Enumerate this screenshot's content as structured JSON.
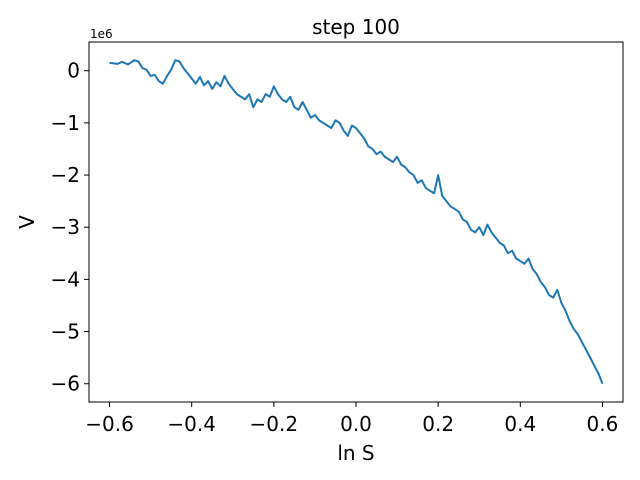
{
  "chart_data": {
    "type": "line",
    "title": "step 100",
    "xlabel": "ln S",
    "ylabel": "V",
    "y_scale_label": "1e6",
    "xlim": [
      -0.65,
      0.65
    ],
    "ylim": [
      -6.35,
      0.55
    ],
    "x_ticks": [
      -0.6,
      -0.4,
      -0.2,
      0.0,
      0.2,
      0.4,
      0.6
    ],
    "x_tick_labels": [
      "−0.6",
      "−0.4",
      "−0.2",
      "0.0",
      "0.2",
      "0.4",
      "0.6"
    ],
    "y_ticks": [
      0,
      -1,
      -2,
      -3,
      -4,
      -5,
      -6
    ],
    "y_tick_labels": [
      "0",
      "−1",
      "−2",
      "−3",
      "−4",
      "−5",
      "−6"
    ],
    "grid": false,
    "series": [
      {
        "color": "#1f77b4",
        "x": [
          -0.6,
          -0.58,
          -0.57,
          -0.555,
          -0.54,
          -0.53,
          -0.52,
          -0.51,
          -0.5,
          -0.49,
          -0.48,
          -0.47,
          -0.46,
          -0.45,
          -0.44,
          -0.43,
          -0.42,
          -0.41,
          -0.4,
          -0.39,
          -0.38,
          -0.37,
          -0.36,
          -0.35,
          -0.34,
          -0.33,
          -0.32,
          -0.31,
          -0.3,
          -0.29,
          -0.28,
          -0.27,
          -0.26,
          -0.25,
          -0.24,
          -0.23,
          -0.22,
          -0.21,
          -0.2,
          -0.19,
          -0.18,
          -0.17,
          -0.16,
          -0.15,
          -0.14,
          -0.13,
          -0.12,
          -0.11,
          -0.1,
          -0.09,
          -0.08,
          -0.07,
          -0.06,
          -0.05,
          -0.04,
          -0.03,
          -0.02,
          -0.01,
          0.0,
          0.01,
          0.02,
          0.03,
          0.04,
          0.05,
          0.06,
          0.07,
          0.08,
          0.09,
          0.1,
          0.11,
          0.12,
          0.13,
          0.14,
          0.15,
          0.16,
          0.17,
          0.18,
          0.19,
          0.2,
          0.21,
          0.22,
          0.23,
          0.24,
          0.25,
          0.26,
          0.27,
          0.28,
          0.29,
          0.3,
          0.31,
          0.32,
          0.33,
          0.34,
          0.35,
          0.36,
          0.37,
          0.38,
          0.39,
          0.4,
          0.41,
          0.42,
          0.43,
          0.44,
          0.45,
          0.46,
          0.47,
          0.48,
          0.49,
          0.5,
          0.51,
          0.52,
          0.53,
          0.54,
          0.55,
          0.56,
          0.57,
          0.58,
          0.59,
          0.6
        ],
        "y": [
          0.15,
          0.13,
          0.17,
          0.12,
          0.2,
          0.18,
          0.05,
          0.02,
          -0.1,
          -0.08,
          -0.2,
          -0.25,
          -0.1,
          0.02,
          0.2,
          0.18,
          0.05,
          -0.05,
          -0.15,
          -0.25,
          -0.12,
          -0.28,
          -0.2,
          -0.35,
          -0.22,
          -0.3,
          -0.1,
          -0.25,
          -0.35,
          -0.45,
          -0.5,
          -0.55,
          -0.45,
          -0.7,
          -0.55,
          -0.6,
          -0.45,
          -0.5,
          -0.3,
          -0.45,
          -0.55,
          -0.6,
          -0.5,
          -0.7,
          -0.75,
          -0.6,
          -0.75,
          -0.9,
          -0.85,
          -0.95,
          -1.0,
          -1.05,
          -1.1,
          -0.95,
          -1.0,
          -1.15,
          -1.25,
          -1.05,
          -1.1,
          -1.2,
          -1.3,
          -1.45,
          -1.5,
          -1.6,
          -1.55,
          -1.65,
          -1.7,
          -1.75,
          -1.65,
          -1.8,
          -1.85,
          -1.95,
          -2.0,
          -2.15,
          -2.1,
          -2.25,
          -2.3,
          -2.35,
          -2.0,
          -2.4,
          -2.5,
          -2.6,
          -2.65,
          -2.7,
          -2.85,
          -2.9,
          -3.05,
          -3.1,
          -3.0,
          -3.15,
          -2.95,
          -3.1,
          -3.2,
          -3.3,
          -3.35,
          -3.5,
          -3.45,
          -3.6,
          -3.65,
          -3.7,
          -3.6,
          -3.8,
          -3.9,
          -4.05,
          -4.15,
          -4.3,
          -4.35,
          -4.2,
          -4.45,
          -4.6,
          -4.8,
          -4.95,
          -5.05,
          -5.2,
          -5.35,
          -5.5,
          -5.65,
          -5.8,
          -6.0
        ]
      }
    ]
  }
}
